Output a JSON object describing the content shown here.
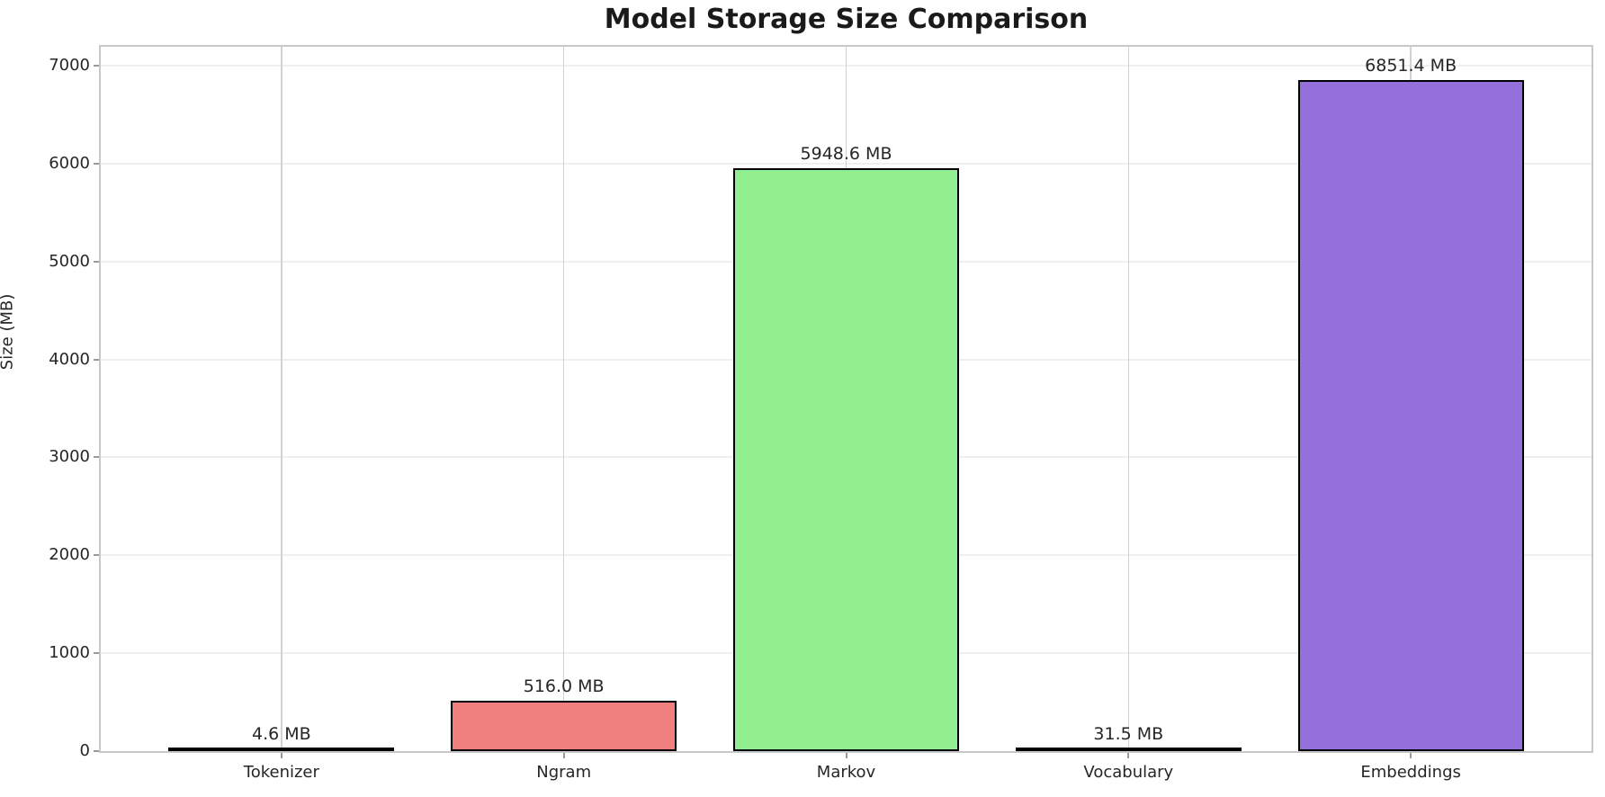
{
  "chart_data": {
    "type": "bar",
    "title": "Model Storage Size Comparison",
    "ylabel": "Size (MB)",
    "xlabel": "",
    "categories": [
      "Tokenizer",
      "Ngram",
      "Markov",
      "Vocabulary",
      "Embeddings"
    ],
    "values": [
      4.6,
      516.0,
      5948.6,
      31.5,
      6851.4
    ],
    "bar_labels": [
      "4.6 MB",
      "516.0 MB",
      "5948.6 MB",
      "31.5 MB",
      "6851.4 MB"
    ],
    "bar_colors": [
      "#87ceeb",
      "#f08080",
      "#90ee90",
      "#f0e68c",
      "#9370db"
    ],
    "bar_edge_color": "#000000",
    "yticks": [
      0,
      1000,
      2000,
      3000,
      4000,
      5000,
      6000,
      7000
    ],
    "ylim": [
      0,
      7193
    ],
    "grid": true,
    "legend_position": "none",
    "bar_width_fraction": 0.8
  }
}
